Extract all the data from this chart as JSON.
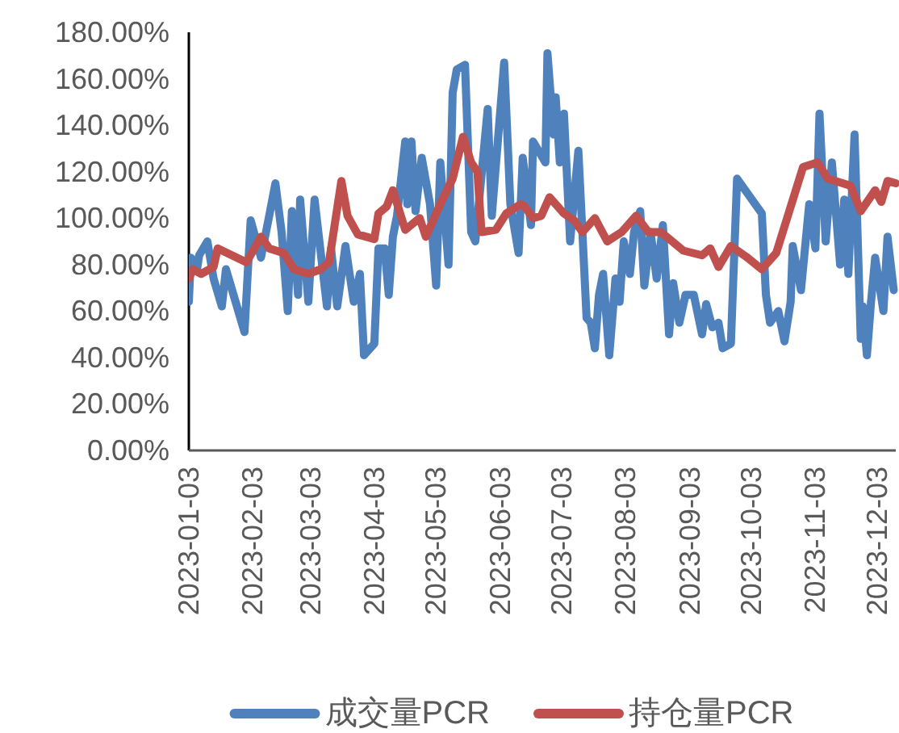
{
  "chart_data": {
    "type": "line",
    "legend": "bottom",
    "xlim": [
      "2023-01-03",
      "2023-12-12"
    ],
    "xticks": [
      "2023-01-03",
      "2023-02-03",
      "2023-03-03",
      "2023-04-03",
      "2023-05-03",
      "2023-06-03",
      "2023-07-03",
      "2023-08-03",
      "2023-09-03",
      "2023-10-03",
      "2023-11-03",
      "2023-12-03"
    ],
    "ylim": [
      0,
      180
    ],
    "yticks": [
      {
        "value": 0,
        "label": "0.00%"
      },
      {
        "value": 20,
        "label": "20.00%"
      },
      {
        "value": 40,
        "label": "40.00%"
      },
      {
        "value": 60,
        "label": "60.00%"
      },
      {
        "value": 80,
        "label": "80.00%"
      },
      {
        "value": 100,
        "label": "100.00%"
      },
      {
        "value": 120,
        "label": "120.00%"
      },
      {
        "value": 140,
        "label": "140.00%"
      },
      {
        "value": 160,
        "label": "160.00%"
      },
      {
        "value": 180,
        "label": "180.00%"
      }
    ],
    "series": [
      {
        "name": "成交量PCR",
        "color": "#4f81bd",
        "x": [
          "2023-01-03",
          "2023-01-04",
          "2023-01-07",
          "2023-01-08",
          "2023-01-12",
          "2023-01-15",
          "2023-01-19",
          "2023-01-21",
          "2023-01-30",
          "2023-02-02",
          "2023-02-07",
          "2023-02-11",
          "2023-02-14",
          "2023-02-17",
          "2023-02-20",
          "2023-02-22",
          "2023-02-25",
          "2023-02-26",
          "2023-03-02",
          "2023-03-05",
          "2023-03-08",
          "2023-03-11",
          "2023-03-13",
          "2023-03-16",
          "2023-03-20",
          "2023-03-24",
          "2023-03-27",
          "2023-03-29",
          "2023-04-03",
          "2023-04-05",
          "2023-04-08",
          "2023-04-10",
          "2023-04-12",
          "2023-04-14",
          "2023-04-18",
          "2023-04-19",
          "2023-04-21",
          "2023-04-23",
          "2023-04-26",
          "2023-04-30",
          "2023-05-03",
          "2023-05-05",
          "2023-05-09",
          "2023-05-11",
          "2023-05-13",
          "2023-05-17",
          "2023-05-20",
          "2023-05-22",
          "2023-05-28",
          "2023-05-30",
          "2023-06-05",
          "2023-06-08",
          "2023-06-12",
          "2023-06-14",
          "2023-06-18",
          "2023-06-19",
          "2023-06-25",
          "2023-06-26",
          "2023-06-29",
          "2023-06-30",
          "2023-07-02",
          "2023-07-04",
          "2023-07-07",
          "2023-07-11",
          "2023-07-15",
          "2023-07-17",
          "2023-07-19",
          "2023-07-21",
          "2023-07-23",
          "2023-07-26",
          "2023-07-29",
          "2023-07-31",
          "2023-08-02",
          "2023-08-05",
          "2023-08-07",
          "2023-08-10",
          "2023-08-12",
          "2023-08-15",
          "2023-08-18",
          "2023-08-21",
          "2023-08-24",
          "2023-08-26",
          "2023-08-29",
          "2023-09-01",
          "2023-09-05",
          "2023-09-09",
          "2023-09-11",
          "2023-09-14",
          "2023-09-17",
          "2023-09-19",
          "2023-09-23",
          "2023-09-26",
          "2023-10-08",
          "2023-10-10",
          "2023-10-12",
          "2023-10-16",
          "2023-10-19",
          "2023-10-22",
          "2023-10-23",
          "2023-10-27",
          "2023-10-31",
          "2023-11-03",
          "2023-11-05",
          "2023-11-08",
          "2023-11-11",
          "2023-11-15",
          "2023-11-17",
          "2023-11-19",
          "2023-11-22",
          "2023-11-25",
          "2023-11-26",
          "2023-11-28",
          "2023-11-30",
          "2023-12-02",
          "2023-12-06",
          "2023-12-08",
          "2023-12-11"
        ],
        "values": [
          64,
          83,
          78,
          84,
          90,
          74,
          62,
          78,
          51,
          99,
          83,
          101,
          115,
          94,
          60,
          103,
          67,
          108,
          64,
          108,
          85,
          62,
          87,
          62,
          88,
          64,
          76,
          41,
          46,
          87,
          87,
          67,
          92,
          101,
          133,
          106,
          133,
          103,
          126,
          106,
          71,
          124,
          80,
          154,
          164,
          166,
          94,
          90,
          147,
          101,
          167,
          106,
          85,
          126,
          97,
          133,
          124,
          171,
          136,
          152,
          124,
          145,
          90,
          129,
          57,
          55,
          44,
          67,
          76,
          41,
          74,
          64,
          90,
          76,
          94,
          103,
          71,
          94,
          74,
          97,
          50,
          72,
          55,
          67,
          67,
          50,
          63,
          53,
          55,
          44,
          46,
          117,
          102,
          67,
          55,
          60,
          47,
          64,
          88,
          69,
          106,
          87,
          145,
          90,
          124,
          80,
          108,
          76,
          136,
          48,
          62,
          41,
          64,
          83,
          60,
          92,
          69
        ]
      },
      {
        "name": "持仓量PCR",
        "color": "#c0504d",
        "x": [
          "2023-01-03",
          "2023-01-05",
          "2023-01-09",
          "2023-01-15",
          "2023-01-17",
          "2023-01-31",
          "2023-02-07",
          "2023-02-11",
          "2023-02-18",
          "2023-02-23",
          "2023-03-02",
          "2023-03-08",
          "2023-03-12",
          "2023-03-18",
          "2023-03-21",
          "2023-03-26",
          "2023-04-03",
          "2023-04-05",
          "2023-04-09",
          "2023-04-12",
          "2023-04-18",
          "2023-04-25",
          "2023-04-28",
          "2023-05-05",
          "2023-05-11",
          "2023-05-16",
          "2023-05-20",
          "2023-05-23",
          "2023-05-25",
          "2023-06-01",
          "2023-06-06",
          "2023-06-13",
          "2023-06-15",
          "2023-06-19",
          "2023-06-23",
          "2023-06-27",
          "2023-07-04",
          "2023-07-09",
          "2023-07-13",
          "2023-07-19",
          "2023-07-25",
          "2023-08-01",
          "2023-08-08",
          "2023-08-14",
          "2023-08-20",
          "2023-08-31",
          "2023-09-09",
          "2023-09-13",
          "2023-09-17",
          "2023-09-23",
          "2023-10-01",
          "2023-10-08",
          "2023-10-15",
          "2023-10-28",
          "2023-11-04",
          "2023-11-09",
          "2023-11-20",
          "2023-11-25",
          "2023-12-02",
          "2023-12-05",
          "2023-12-08",
          "2023-12-12"
        ],
        "values": [
          74,
          78,
          76,
          79,
          87,
          81,
          92,
          87,
          85,
          78,
          76,
          78,
          81,
          116,
          101,
          93,
          91,
          102,
          105,
          112,
          95,
          100,
          92,
          106,
          117,
          135,
          124,
          120,
          94,
          95,
          102,
          106,
          105,
          100,
          101,
          109,
          102,
          99,
          94,
          100,
          90,
          94,
          101,
          94,
          94,
          86,
          84,
          87,
          79,
          88,
          83,
          78,
          85,
          122,
          124,
          117,
          114,
          103,
          112,
          107,
          116,
          115
        ]
      }
    ]
  }
}
